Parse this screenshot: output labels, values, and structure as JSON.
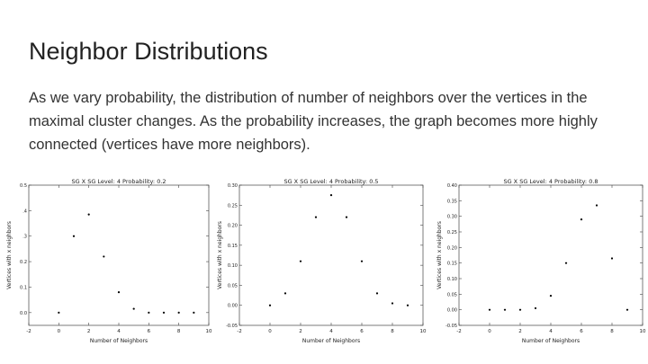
{
  "slide": {
    "title": "Neighbor Distributions",
    "body": "As we vary probability, the distribution of number of neighbors over the vertices in the maximal cluster changes. As the probability increases, the graph becomes more highly connected (vertices have more neighbors)."
  },
  "colors": {
    "text": "#222222",
    "axis": "#444444",
    "point": "#000000",
    "background": "#ffffff"
  },
  "chart_data": [
    {
      "type": "scatter",
      "title": "SG X SG Level: 4  Probability: 0.2",
      "xlabel": "Number of Neighbors",
      "ylabel": "Vertices with x neighbors",
      "xlim": [
        -2,
        10
      ],
      "ylim": [
        -0.05,
        0.5
      ],
      "x_ticks": [
        -2,
        0,
        2,
        4,
        6,
        8,
        10
      ],
      "y_ticks": [
        0.0,
        0.1,
        0.2,
        0.3,
        0.4,
        0.5
      ],
      "y_tick_labels": [
        "0.0",
        "0.1",
        "0.2",
        ".3",
        ".4",
        "0.5"
      ],
      "grid": false,
      "points": [
        {
          "x": 0,
          "y": 0.0
        },
        {
          "x": 1,
          "y": 0.3
        },
        {
          "x": 2,
          "y": 0.385
        },
        {
          "x": 3,
          "y": 0.22
        },
        {
          "x": 4,
          "y": 0.08
        },
        {
          "x": 5,
          "y": 0.015
        },
        {
          "x": 6,
          "y": 0.0
        },
        {
          "x": 7,
          "y": 0.0
        },
        {
          "x": 8,
          "y": 0.0
        },
        {
          "x": 9,
          "y": 0.0
        }
      ]
    },
    {
      "type": "scatter",
      "title": "SG X SG Level: 4  Probability: 0.5",
      "xlabel": "Number of Neighbors",
      "ylabel": "Vertices with x neighbors",
      "xlim": [
        -2,
        10
      ],
      "ylim": [
        -0.05,
        0.3
      ],
      "x_ticks": [
        -2,
        0,
        2,
        4,
        6,
        8,
        10
      ],
      "y_ticks": [
        -0.05,
        0.0,
        0.05,
        0.1,
        0.15,
        0.2,
        0.25,
        0.3
      ],
      "y_tick_labels": [
        "-0.05",
        "0.00",
        "0.05",
        "0.10",
        "0.15",
        "0.20",
        "0.25",
        "0.30"
      ],
      "grid": false,
      "points": [
        {
          "x": 0,
          "y": 0.0
        },
        {
          "x": 1,
          "y": 0.03
        },
        {
          "x": 2,
          "y": 0.11
        },
        {
          "x": 3,
          "y": 0.22
        },
        {
          "x": 4,
          "y": 0.275
        },
        {
          "x": 5,
          "y": 0.22
        },
        {
          "x": 6,
          "y": 0.11
        },
        {
          "x": 7,
          "y": 0.03
        },
        {
          "x": 8,
          "y": 0.005
        },
        {
          "x": 9,
          "y": 0.0
        }
      ]
    },
    {
      "type": "scatter",
      "title": "SG X SG Level: 4  Probability: 0.8",
      "xlabel": "Number of Neighbors",
      "ylabel": "Vertices with x neighbors",
      "xlim": [
        -2,
        10
      ],
      "ylim": [
        -0.05,
        0.4
      ],
      "x_ticks": [
        -2,
        0,
        2,
        4,
        6,
        8,
        10
      ],
      "y_ticks": [
        -0.05,
        0.0,
        0.05,
        0.1,
        0.15,
        0.2,
        0.25,
        0.3,
        0.35,
        0.4
      ],
      "y_tick_labels": [
        "-0.05",
        "0.00",
        "0.05",
        "0.10",
        "0.15",
        "0.20",
        "0.25",
        "0.30",
        "0.35",
        "0.40"
      ],
      "grid": false,
      "points": [
        {
          "x": 0,
          "y": 0.0
        },
        {
          "x": 1,
          "y": 0.0
        },
        {
          "x": 2,
          "y": 0.0
        },
        {
          "x": 3,
          "y": 0.005
        },
        {
          "x": 4,
          "y": 0.045
        },
        {
          "x": 5,
          "y": 0.15
        },
        {
          "x": 6,
          "y": 0.29
        },
        {
          "x": 7,
          "y": 0.335
        },
        {
          "x": 8,
          "y": 0.165
        },
        {
          "x": 9,
          "y": 0.0
        }
      ]
    }
  ]
}
